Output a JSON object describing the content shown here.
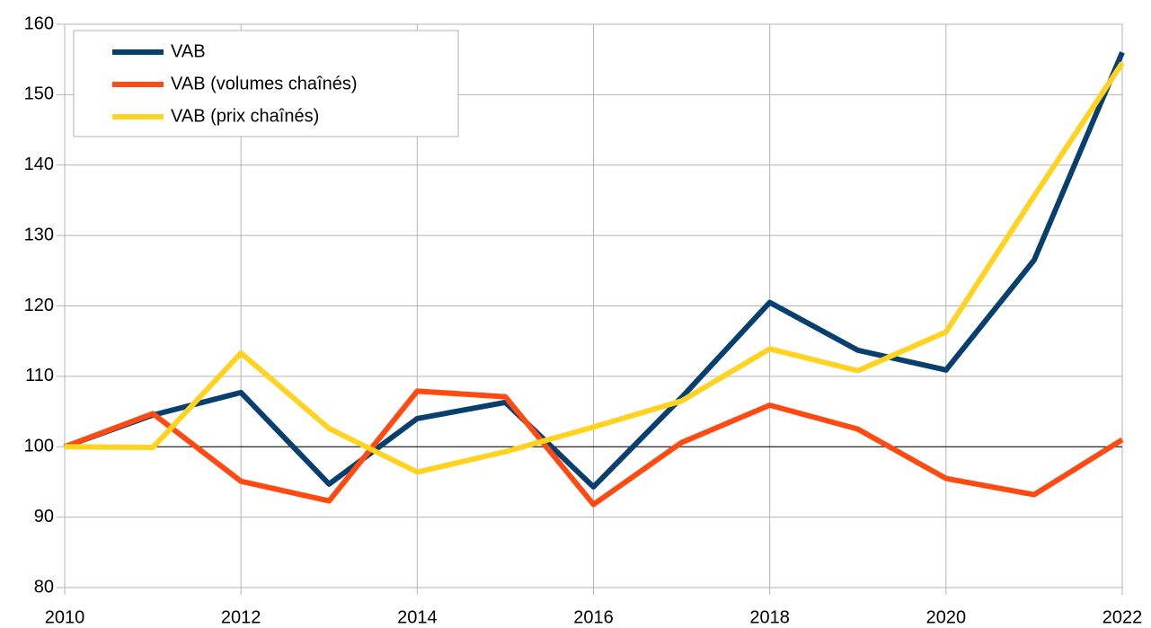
{
  "chart_data": {
    "type": "line",
    "x": [
      2010,
      2011,
      2012,
      2013,
      2014,
      2015,
      2016,
      2017,
      2018,
      2019,
      2020,
      2021,
      2022
    ],
    "series": [
      {
        "name": "VAB",
        "color": "#073f6e",
        "values": [
          100,
          104.5,
          107.7,
          94.7,
          104,
          106.3,
          94.3,
          107,
          120.5,
          113.7,
          110.9,
          126.5,
          156
        ]
      },
      {
        "name": "VAB (volumes chaînés)",
        "color": "#ff4a11",
        "values": [
          100,
          104.7,
          95.1,
          92.3,
          107.9,
          107.1,
          91.8,
          100.6,
          105.9,
          102.5,
          95.5,
          93.2,
          101
        ]
      },
      {
        "name": "VAB (prix chaînés)",
        "color": "#ffd320",
        "values": [
          100,
          99.9,
          113.3,
          102.6,
          96.4,
          99.3,
          102.8,
          106.5,
          113.9,
          110.8,
          116.3,
          135.6,
          154.5
        ]
      }
    ],
    "xlim": [
      2010,
      2022
    ],
    "xticks": [
      2010,
      2012,
      2014,
      2016,
      2018,
      2020,
      2022
    ],
    "ylim": [
      80,
      160
    ],
    "yticks": [
      80,
      90,
      100,
      110,
      120,
      130,
      140,
      150,
      160
    ],
    "grid": true,
    "reference_line": 100,
    "legend": "upper left"
  }
}
